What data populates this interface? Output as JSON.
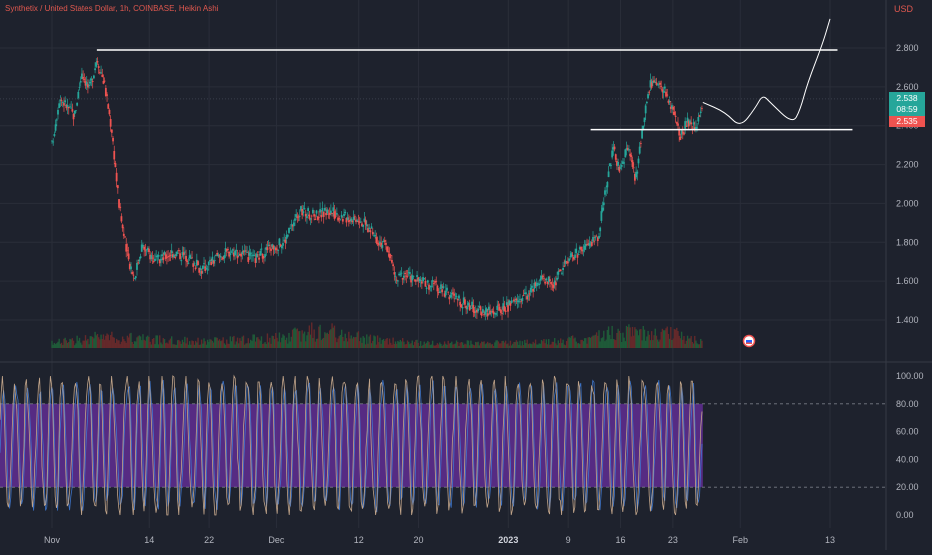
{
  "header": {
    "title": "Synthetix / United States Dollar, 1h, COINBASE, Heikin Ashi",
    "currency": "USD"
  },
  "price_badges": {
    "last_price": "2.538",
    "countdown": "08:59",
    "other_price": "2.535"
  },
  "colors": {
    "background": "#1e222d",
    "grid": "#2a2e39",
    "up": "#26a69a",
    "down": "#ef5350",
    "annotation": "#ffffff",
    "stoch_band": "#6a2fa0",
    "stoch_k": "#c2a58a",
    "stoch_d": "#3f7bd6",
    "axis_text": "#b2b5be"
  },
  "chart_data": [
    {
      "type": "candlestick",
      "style": "heikin-ashi",
      "title": "Synthetix / United States Dollar, 1h, COINBASE, Heikin Ashi",
      "ylabel": "USD",
      "ylim": [
        1.3,
        3.0
      ],
      "y_ticks": [
        "2.800",
        "2.600",
        "2.400",
        "2.200",
        "2.000",
        "1.800",
        "1.600",
        "1.400"
      ],
      "x_ticks": [
        "Nov",
        "14",
        "22",
        "Dec",
        "12",
        "20",
        "2023",
        "9",
        "16",
        "23",
        "Feb",
        "13"
      ],
      "grid": true,
      "close_path": [
        {
          "date": "Nov 1",
          "value": 2.3
        },
        {
          "date": "Nov 2",
          "value": 2.55
        },
        {
          "date": "Nov 4",
          "value": 2.45
        },
        {
          "date": "Nov 5",
          "value": 2.68
        },
        {
          "date": "Nov 6",
          "value": 2.58
        },
        {
          "date": "Nov 7",
          "value": 2.75
        },
        {
          "date": "Nov 8",
          "value": 2.62
        },
        {
          "date": "Nov 9",
          "value": 2.38
        },
        {
          "date": "Nov 10",
          "value": 1.98
        },
        {
          "date": "Nov 11",
          "value": 1.74
        },
        {
          "date": "Nov 12",
          "value": 1.62
        },
        {
          "date": "Nov 13",
          "value": 1.78
        },
        {
          "date": "Nov 15",
          "value": 1.7
        },
        {
          "date": "Nov 17",
          "value": 1.75
        },
        {
          "date": "Nov 19",
          "value": 1.73
        },
        {
          "date": "Nov 21",
          "value": 1.66
        },
        {
          "date": "Nov 23",
          "value": 1.72
        },
        {
          "date": "Nov 25",
          "value": 1.76
        },
        {
          "date": "Nov 28",
          "value": 1.71
        },
        {
          "date": "Nov 30",
          "value": 1.77
        },
        {
          "date": "Dec 2",
          "value": 1.8
        },
        {
          "date": "Dec 4",
          "value": 1.96
        },
        {
          "date": "Dec 6",
          "value": 1.94
        },
        {
          "date": "Dec 8",
          "value": 1.96
        },
        {
          "date": "Dec 10",
          "value": 1.93
        },
        {
          "date": "Dec 12",
          "value": 1.93
        },
        {
          "date": "Dec 14",
          "value": 1.84
        },
        {
          "date": "Dec 16",
          "value": 1.76
        },
        {
          "date": "Dec 17",
          "value": 1.6
        },
        {
          "date": "Dec 18",
          "value": 1.64
        },
        {
          "date": "Dec 20",
          "value": 1.6
        },
        {
          "date": "Dec 22",
          "value": 1.58
        },
        {
          "date": "Dec 25",
          "value": 1.51
        },
        {
          "date": "Dec 28",
          "value": 1.45
        },
        {
          "date": "Dec 30",
          "value": 1.44
        },
        {
          "date": "Jan 1",
          "value": 1.47
        },
        {
          "date": "Jan 3",
          "value": 1.52
        },
        {
          "date": "Jan 5",
          "value": 1.58
        },
        {
          "date": "Jan 6",
          "value": 1.62
        },
        {
          "date": "Jan 7",
          "value": 1.58
        },
        {
          "date": "Jan 9",
          "value": 1.72
        },
        {
          "date": "Jan 11",
          "value": 1.76
        },
        {
          "date": "Jan 13",
          "value": 1.83
        },
        {
          "date": "Jan 14",
          "value": 2.08
        },
        {
          "date": "Jan 15",
          "value": 2.28
        },
        {
          "date": "Jan 16",
          "value": 2.16
        },
        {
          "date": "Jan 17",
          "value": 2.3
        },
        {
          "date": "Jan 18",
          "value": 2.12
        },
        {
          "date": "Jan 19",
          "value": 2.4
        },
        {
          "date": "Jan 20",
          "value": 2.62
        },
        {
          "date": "Jan 21",
          "value": 2.6
        },
        {
          "date": "Jan 22",
          "value": 2.58
        },
        {
          "date": "Jan 23",
          "value": 2.47
        },
        {
          "date": "Jan 24",
          "value": 2.33
        },
        {
          "date": "Jan 25",
          "value": 2.43
        },
        {
          "date": "Jan 26",
          "value": 2.38
        },
        {
          "date": "Jan 27",
          "value": 2.538
        }
      ],
      "volume_path": [
        {
          "date": "Nov 1",
          "value": 0.15
        },
        {
          "date": "Nov 8",
          "value": 0.35
        },
        {
          "date": "Nov 15",
          "value": 0.25
        },
        {
          "date": "Nov 22",
          "value": 0.2
        },
        {
          "date": "Dec 1",
          "value": 0.3
        },
        {
          "date": "Dec 7",
          "value": 0.55
        },
        {
          "date": "Dec 14",
          "value": 0.25
        },
        {
          "date": "Dec 21",
          "value": 0.15
        },
        {
          "date": "Jan 1",
          "value": 0.15
        },
        {
          "date": "Jan 8",
          "value": 0.2
        },
        {
          "date": "Jan 15",
          "value": 0.45
        },
        {
          "date": "Jan 22",
          "value": 0.5
        },
        {
          "date": "Jan 27",
          "value": 0.2
        }
      ],
      "annotations": [
        {
          "kind": "horizontal-line",
          "value": 2.79,
          "from": "Nov 7",
          "to": "Feb 14"
        },
        {
          "kind": "horizontal-line",
          "value": 2.38,
          "from": "Jan 12",
          "to": "Feb 16"
        },
        {
          "kind": "projection-path",
          "points": [
            {
              "date": "Jan 27",
              "value": 2.52
            },
            {
              "date": "Jan 30",
              "value": 2.47
            },
            {
              "date": "Feb 1",
              "value": 2.39
            },
            {
              "date": "Feb 3",
              "value": 2.49
            },
            {
              "date": "Feb 4",
              "value": 2.56
            },
            {
              "date": "Feb 5",
              "value": 2.52
            },
            {
              "date": "Feb 8",
              "value": 2.41
            },
            {
              "date": "Feb 9",
              "value": 2.48
            },
            {
              "date": "Feb 10",
              "value": 2.62
            },
            {
              "date": "Feb 12",
              "value": 2.82
            },
            {
              "date": "Feb 13",
              "value": 2.95
            }
          ]
        }
      ],
      "current_price_line": 2.538
    },
    {
      "type": "line",
      "indicator": "stochastic oscillator",
      "ylim": [
        -8,
        110
      ],
      "y_ticks": [
        "100.00",
        "80.00",
        "60.00",
        "40.00",
        "20.00",
        "0.00"
      ],
      "band": [
        20,
        80
      ],
      "series": [
        {
          "color": "#c2a58a",
          "values_range": [
            0,
            100
          ],
          "oscillating": true
        },
        {
          "color": "#3f7bd6",
          "values_range": [
            0,
            100
          ],
          "oscillating": true
        }
      ]
    }
  ]
}
